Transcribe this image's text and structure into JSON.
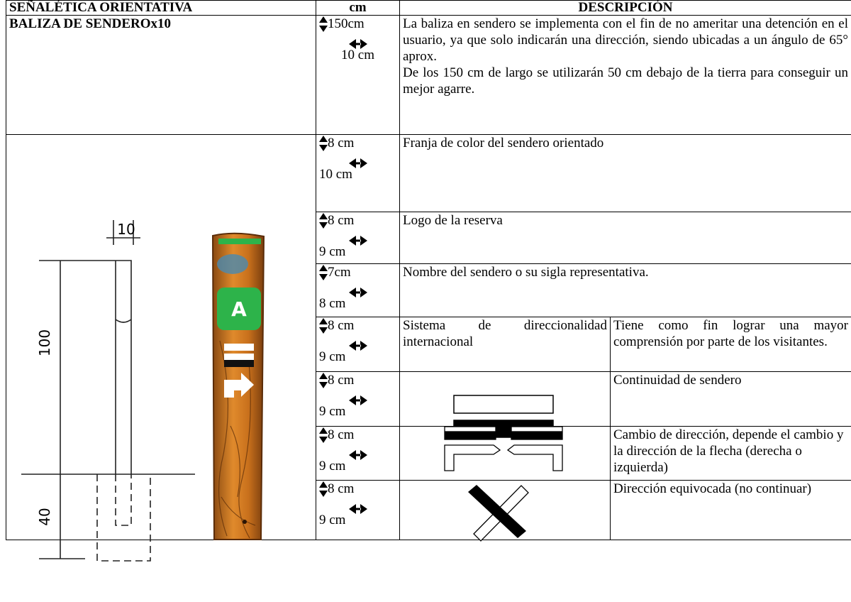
{
  "table": {
    "header": [
      "SEÑALÉTICA ORIENTATIVA",
      "cm",
      "DESCRIPCIÓN"
    ],
    "rows": [
      {
        "label": "BALIZA DE SENDEROx10",
        "height": "150cm",
        "width": "10 cm",
        "description": [
          "La baliza en sendero se implementa con el fin de no ameritar una detención en el usuario, ya que solo indicarán una dirección, siendo ubicadas a un ángulo de 65° aprox.",
          "De los 150 cm de largo se utilizarán 50 cm debajo de la tierra para conseguir un mejor agarre."
        ]
      },
      {
        "height": "8 cm",
        "width": "10 cm",
        "description": "Franja de color del sendero orientado"
      },
      {
        "height": "8 cm",
        "width": "9 cm",
        "description": "Logo de la reserva"
      },
      {
        "height": "7cm",
        "width": "8 cm",
        "description": "Nombre del sendero o su sigla representativa."
      },
      {
        "height": "8 cm",
        "width": "9 cm",
        "element": "Sistema de direccionalidad internacional",
        "description": "Tiene como fin lograr una mayor comprensión por parte de los visitantes."
      },
      {
        "height": "8 cm",
        "width": "9 cm",
        "description": "Continuidad de sendero"
      },
      {
        "height": "8 cm",
        "width": "9 cm",
        "description": "Cambio de dirección, depende el cambio y la dirección de la flecha (derecha o izquierda)"
      },
      {
        "height": "8 cm",
        "width": "9 cm",
        "description": "Dirección equivocada (no continuar)"
      }
    ]
  },
  "drawing": {
    "dimensions": [
      "10",
      "100",
      "40"
    ],
    "sign_letter": "A"
  }
}
